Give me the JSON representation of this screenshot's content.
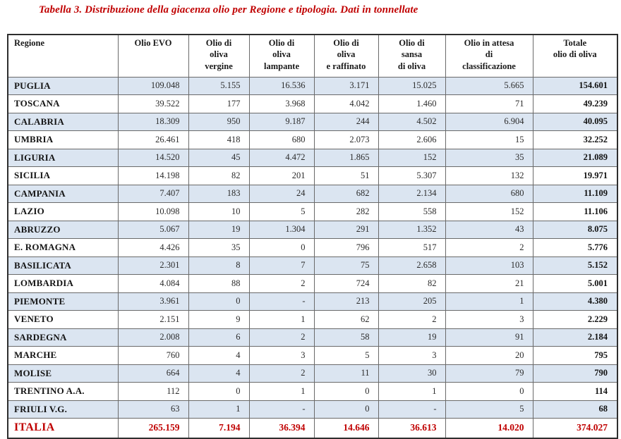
{
  "title": "Tabella 3. Distribuzione della giacenza olio per Regione e tipologia. Dati in tonnellate",
  "colors": {
    "title_red": "#C00000",
    "totals_red": "#C00000",
    "row_shade": "#DBE5F1",
    "grid_inner": "#6A6A6A",
    "grid_outer": "#2E2E2E"
  },
  "chart_data": {
    "type": "table",
    "title": "Tabella 3. Distribuzione della giacenza olio per Regione e tipologia. Dati in tonnellate"
  },
  "table": {
    "columns": [
      "Regione",
      "Olio EVO",
      "Olio di\noliva\nvergine",
      "Olio di\noliva\nlampante",
      "Olio di\noliva\ne raffinato",
      "Olio di\nsansa\ndi oliva",
      "Olio in attesa\ndi\nclassificazione",
      "Totale\nolio di oliva"
    ],
    "rows": [
      {
        "region": "PUGLIA",
        "values": [
          "109.048",
          "5.155",
          "16.536",
          "3.171",
          "15.025",
          "5.665"
        ],
        "total": "154.601"
      },
      {
        "region": "TOSCANA",
        "values": [
          "39.522",
          "177",
          "3.968",
          "4.042",
          "1.460",
          "71"
        ],
        "total": "49.239"
      },
      {
        "region": "CALABRIA",
        "values": [
          "18.309",
          "950",
          "9.187",
          "244",
          "4.502",
          "6.904"
        ],
        "total": "40.095"
      },
      {
        "region": "UMBRIA",
        "values": [
          "26.461",
          "418",
          "680",
          "2.073",
          "2.606",
          "15"
        ],
        "total": "32.252"
      },
      {
        "region": "LIGURIA",
        "values": [
          "14.520",
          "45",
          "4.472",
          "1.865",
          "152",
          "35"
        ],
        "total": "21.089"
      },
      {
        "region": "SICILIA",
        "values": [
          "14.198",
          "82",
          "201",
          "51",
          "5.307",
          "132"
        ],
        "total": "19.971"
      },
      {
        "region": "CAMPANIA",
        "values": [
          "7.407",
          "183",
          "24",
          "682",
          "2.134",
          "680"
        ],
        "total": "11.109"
      },
      {
        "region": "LAZIO",
        "values": [
          "10.098",
          "10",
          "5",
          "282",
          "558",
          "152"
        ],
        "total": "11.106"
      },
      {
        "region": "ABRUZZO",
        "values": [
          "5.067",
          "19",
          "1.304",
          "291",
          "1.352",
          "43"
        ],
        "total": "8.075"
      },
      {
        "region": "E. ROMAGNA",
        "values": [
          "4.426",
          "35",
          "0",
          "796",
          "517",
          "2"
        ],
        "total": "5.776"
      },
      {
        "region": "BASILICATA",
        "values": [
          "2.301",
          "8",
          "7",
          "75",
          "2.658",
          "103"
        ],
        "total": "5.152"
      },
      {
        "region": "LOMBARDIA",
        "values": [
          "4.084",
          "88",
          "2",
          "724",
          "82",
          "21"
        ],
        "total": "5.001"
      },
      {
        "region": "PIEMONTE",
        "values": [
          "3.961",
          "0",
          "-",
          "213",
          "205",
          "1"
        ],
        "total": "4.380"
      },
      {
        "region": "VENETO",
        "values": [
          "2.151",
          "9",
          "1",
          "62",
          "2",
          "3"
        ],
        "total": "2.229"
      },
      {
        "region": "SARDEGNA",
        "values": [
          "2.008",
          "6",
          "2",
          "58",
          "19",
          "91"
        ],
        "total": "2.184"
      },
      {
        "region": "MARCHE",
        "values": [
          "760",
          "4",
          "3",
          "5",
          "3",
          "20"
        ],
        "total": "795"
      },
      {
        "region": "MOLISE",
        "values": [
          "664",
          "4",
          "2",
          "11",
          "30",
          "79"
        ],
        "total": "790"
      },
      {
        "region": "TRENTINO A.A.",
        "values": [
          "112",
          "0",
          "1",
          "0",
          "1",
          "0"
        ],
        "total": "114"
      },
      {
        "region": "FRIULI V.G.",
        "values": [
          "63",
          "1",
          "-",
          "0",
          "-",
          "5"
        ],
        "total": "68"
      }
    ],
    "totals": {
      "region": "ITALIA",
      "values": [
        "265.159",
        "7.194",
        "36.394",
        "14.646",
        "36.613",
        "14.020"
      ],
      "total": "374.027"
    }
  }
}
